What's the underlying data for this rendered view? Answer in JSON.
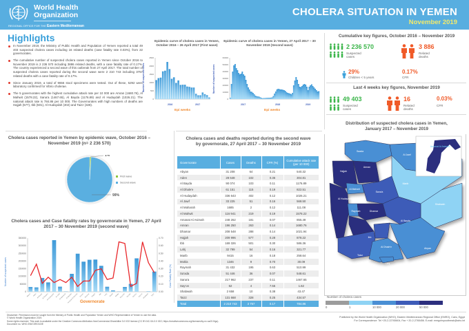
{
  "header": {
    "org_name_line1": "World Health",
    "org_name_line2": "Organization",
    "org_sub_prefix": "REGIONAL OFFICE FOR THE",
    "org_sub_region": "Eastern Mediterranean",
    "title": "CHOLERA SITUATION IN YEMEN",
    "subtitle": "November 2019"
  },
  "highlights": {
    "title": "Highlights",
    "items": [
      "In November 2019, the Ministry of Public Health and Population of Yemen reported a total 49 403 suspected cholera cases including 16 related deaths (case fatality rate 0.03%), from 22 governorates.",
      "The cumulative number of suspected cholera cases reported in Yemen since October 2016 to November 2019 is 2 236 570 including 3886 related deaths, with a case fatality rate of 0.17%. The country experienced a second wave of this outbreak from 27 April 2017. The total number of suspected cholera cases reported during the second wave were 2 210 743 including 3757 related deaths with a case fatality rate of 0.17%.",
      "Since January 2019, a total of 9656 stool specimens were tested. Out of these, 5292 were laboratory confirmed for Vibrio cholerae.",
      "The 5 governorates with the highest cumulative attack rate per 10 000 are Amran (1680.76), Al Mahwit (1578.22), Sana'a (1467.65), Al Bayda (1176.89) and Al Hudaydah (1026.21). The national attack rate is 784.86 per 10 000. The Governorates with high numbers of deaths are Hajjah (577), Ibb (501), Al Hudaydah (402) and Taizz (328)."
    ]
  },
  "key_figures": {
    "cumulative_title": "Cumulative key figures, October 2016 – November 2019",
    "cum_cases": "2 236 570",
    "cum_cases_label1": "Suspected",
    "cum_cases_label2": "cases",
    "cum_deaths": "3 886",
    "cum_deaths_label1": "Related",
    "cum_deaths_label2": "deaths",
    "children": "29%",
    "children_label": "Children < 5 years",
    "cfr": "0.17%",
    "cfr_label": "CFR",
    "last4_title": "Last 4 weeks key figures, November 2019",
    "l4_cases": "49 403",
    "l4_cases_label1": "Suspected",
    "l4_cases_label2": "cases",
    "l4_deaths": "16",
    "l4_deaths_label1": "Related",
    "l4_deaths_label2": "deaths",
    "l4_cfr": "0.03%",
    "l4_cfr_label": "CFR",
    "colors": {
      "cases": "#3bb54a",
      "deaths": "#f05a28",
      "children": "#3aa0da"
    }
  },
  "map": {
    "title1": "Distribution of suspected cholera cases in Yemen,",
    "title2": "January 2017 – November 2019",
    "labels": [
      "Saada",
      "Al Jawf",
      "Hajjah",
      "Amran",
      "Al Mahwit",
      "Sana'a",
      "Marib",
      "Al Hudaydah",
      "Raymah",
      "Dhamar",
      "Shabwah",
      "Al Bayda",
      "Ibb",
      "Al Dhale'e",
      "Abyan",
      "Taizz",
      "Lahj",
      "Aden",
      "Amanat Al Asimah"
    ],
    "legend_title": "Number of cholera cases",
    "legend_ticks": [
      "0",
      "1",
      "10 000",
      "20 000",
      "50 000"
    ],
    "legend_colors": [
      "#9c9c9c",
      "#8fd3f4",
      "#4a8fd4",
      "#3d5cb8",
      "#2c2f7e"
    ]
  },
  "table": {
    "title1": "Cholera cases and deaths reported during the second wave",
    "title2": "by governorate, 27 April 2017 – 30 November 2019",
    "headers": [
      "Governorate",
      "Cases",
      "Deaths",
      "CFR (%)",
      "Cumulative attack rate (per 10 000)"
    ],
    "rows": [
      [
        "Abyan",
        "31 208",
        "64",
        "0.21",
        "540.32"
      ],
      [
        "Aden",
        "28 648",
        "102",
        "0.36",
        "304.81"
      ],
      [
        "Al Bayda",
        "90 074",
        "103",
        "0.11",
        "1176.89"
      ],
      [
        "Al Dhale'e",
        "61 151",
        "115",
        "0.19",
        "822.51"
      ],
      [
        "Al Hudaydah",
        "336 643",
        "402",
        "0.12",
        "1026.21"
      ],
      [
        "Al Jawf",
        "33 225",
        "51",
        "0.16",
        "568.50"
      ],
      [
        "Al Maharah",
        "1685",
        "2",
        "0.12",
        "111.08"
      ],
      [
        "Al Mahwit",
        "116 941",
        "219",
        "0.19",
        "1578.22"
      ],
      [
        "Amanat Al Asimah",
        "248 262",
        "181",
        "0.07",
        "855.49"
      ],
      [
        "Amran",
        "196 250",
        "263",
        "0.14",
        "1680.76"
      ],
      [
        "Dhamar",
        "208 548",
        "288",
        "0.14",
        "1021.94"
      ],
      [
        "Hajjah",
        "209 996",
        "577",
        "0.28",
        "878.22"
      ],
      [
        "Ibb",
        "169 326",
        "501",
        "0.30",
        "586.36"
      ],
      [
        "Lahj",
        "32 799",
        "54",
        "0.16",
        "321.77"
      ],
      [
        "Marib",
        "9415",
        "16",
        "0.18",
        "258.64"
      ],
      [
        "Mokla",
        "1346",
        "9",
        "0.70",
        "30.09"
      ],
      [
        "Raymah",
        "31 432",
        "195",
        "0.63",
        "510.99"
      ],
      [
        "Sa'ada",
        "51 446",
        "36",
        "0.07",
        "548.61"
      ],
      [
        "Sana'a",
        "217 962",
        "237",
        "0.11",
        "1467.65"
      ],
      [
        "Say'on",
        "62",
        "4",
        "7.55",
        "1.62"
      ],
      [
        "Shabwah",
        "2 658",
        "10",
        "0.38",
        "43.47"
      ],
      [
        "Taizz",
        "131 668",
        "328",
        "0.25",
        "434.57"
      ]
    ],
    "total": [
      "Total",
      "2 210 743",
      "3 757",
      "0.17",
      "784.86"
    ]
  },
  "chart_data": [
    {
      "type": "bar",
      "title": "Epidemic curve of cholera cases in Yemen, October 2016 – 26 April 2017 (First wave)",
      "xlabel": "Epi weeks",
      "ylabel": "Number of suspected cases",
      "ylim": [
        0,
        2500
      ],
      "yticks": [
        "0",
        "500",
        "1000",
        "1500",
        "2000",
        "2500"
      ],
      "year_labels": [
        "2016",
        "2017"
      ],
      "values": [
        1150,
        1270,
        1300,
        1680,
        1720,
        2250,
        1820,
        1230,
        1320,
        980,
        1130,
        860,
        870,
        870,
        760,
        740,
        700,
        700,
        320,
        230,
        230,
        400,
        300,
        240,
        100
      ]
    },
    {
      "type": "area",
      "title": "Epidemic curve of cholera cases in Yemen, 27 April 2017 – 30 November 2019 (Second wave)",
      "xlabel": "Epi weeks",
      "ylabel": "Number of suspected cases",
      "ylim": [
        0,
        60000
      ],
      "yticks": [
        "0",
        "10000",
        "20000",
        "30000",
        "40000",
        "50000",
        "60000"
      ],
      "year_labels": [
        "2017",
        "2018",
        "2019"
      ],
      "values": [
        2000,
        22000,
        40000,
        49000,
        51000,
        45000,
        42000,
        38000,
        36000,
        37000,
        40000,
        36000,
        34000,
        28000,
        22000,
        17000,
        14000,
        11000,
        10500,
        9000,
        7000,
        5000,
        4200,
        3800,
        3600,
        2600,
        1800,
        1200,
        1500,
        1500,
        1700,
        1800,
        1900,
        2000,
        2100,
        2500,
        4500,
        8000,
        11000,
        14000,
        15000,
        14500,
        14000,
        14000,
        13500,
        13000,
        12000,
        10000,
        9000,
        8500,
        8000,
        7000,
        9000,
        20000,
        27000,
        32000,
        28000,
        22000,
        18000,
        17500,
        19000,
        21000,
        22000,
        21000,
        18000,
        13000,
        18000,
        20000,
        21500,
        19000,
        17000,
        15000,
        13000,
        11000,
        11500
      ]
    },
    {
      "type": "pie",
      "title": "Cholera cases reported in Yemen by epidemic wave, October 2016 – November 2019 (n= 2 236 570)",
      "labels": [
        "First wave",
        "Second wave"
      ],
      "values": [
        1,
        99
      ],
      "value_labels": [
        "1%",
        "99%"
      ],
      "colors": [
        "#8dc63f",
        "#5aafe0"
      ],
      "legend": "right"
    },
    {
      "type": "bar",
      "title": "Cholera cases and Case fatality rates by governorate in Yemen, 27 April 2017 – 30 November 2019 (second wave)",
      "xlabel": "Governorate",
      "ylabel": "Number of suspected cases",
      "y2label": "Case Fatality Rate (%)",
      "ylim": [
        0,
        350000
      ],
      "y2lim": [
        0,
        0.7
      ],
      "yticks": [
        "0",
        "50000",
        "100000",
        "150000",
        "200000",
        "250000",
        "300000",
        "350000"
      ],
      "y2ticks": [
        "0.00",
        "0.10",
        "0.20",
        "0.30",
        "0.40",
        "0.50",
        "0.60",
        "0.70"
      ],
      "categories": [
        "Abyan",
        "Aden",
        "Al Bayda",
        "Al Dhale'e",
        "Al Hudaydah",
        "Al Jawf",
        "Al Maharah",
        "Al Mahwit",
        "Amanat Al Asimah",
        "Amran",
        "Dhamar",
        "Hajjah",
        "Ibb",
        "Lahj",
        "Marib",
        "Mokla",
        "Raymah",
        "Sa'ada",
        "Sana'a",
        "Say'on",
        "Shabwah",
        "Taizz"
      ],
      "series": [
        {
          "name": "Cases",
          "type": "bar",
          "values": [
            31208,
            28648,
            90074,
            61151,
            336643,
            33225,
            1685,
            116941,
            248262,
            196250,
            208548,
            209996,
            169326,
            32799,
            9415,
            1346,
            31432,
            51446,
            217962,
            62,
            2658,
            131668
          ]
        },
        {
          "name": "CFR (%)",
          "type": "line",
          "values": [
            0.21,
            0.36,
            0.11,
            0.19,
            0.12,
            0.16,
            0.12,
            0.19,
            0.07,
            0.14,
            0.14,
            0.28,
            0.3,
            0.16,
            0.18,
            0.7,
            0.63,
            0.07,
            0.11,
            7.55,
            0.38,
            0.25
          ]
        }
      ]
    }
  ],
  "footer": {
    "disclaimer": "Disclaimer: Permission must be sought from the Ministry of Public Health and Population Yemen and WHO Representative of Yemen to use the data.",
    "copyright": "© World Health Organization 2019.",
    "license": "Some rights reserved. This work is available under the Creative Commons Attribution-NonCommercial-ShareAlike 3.0 IGO license (CC BY-NC-SA 3.0 IGO; https://creativecommons.org/licenses/by-nc-sa/3.0/igo).",
    "doc_no": "Document no. WHO-EM/CSR/243/E",
    "published": "Published by the World Health Organization (WHO), Eastern Mediterranean Regional Office (EMRO), Cairo, Egypt",
    "contact": "For Correspondence: Tel +20-2-22765604, Fax + 20-2-2765456. E-mail: emrgohspoutbreak@who.int"
  }
}
